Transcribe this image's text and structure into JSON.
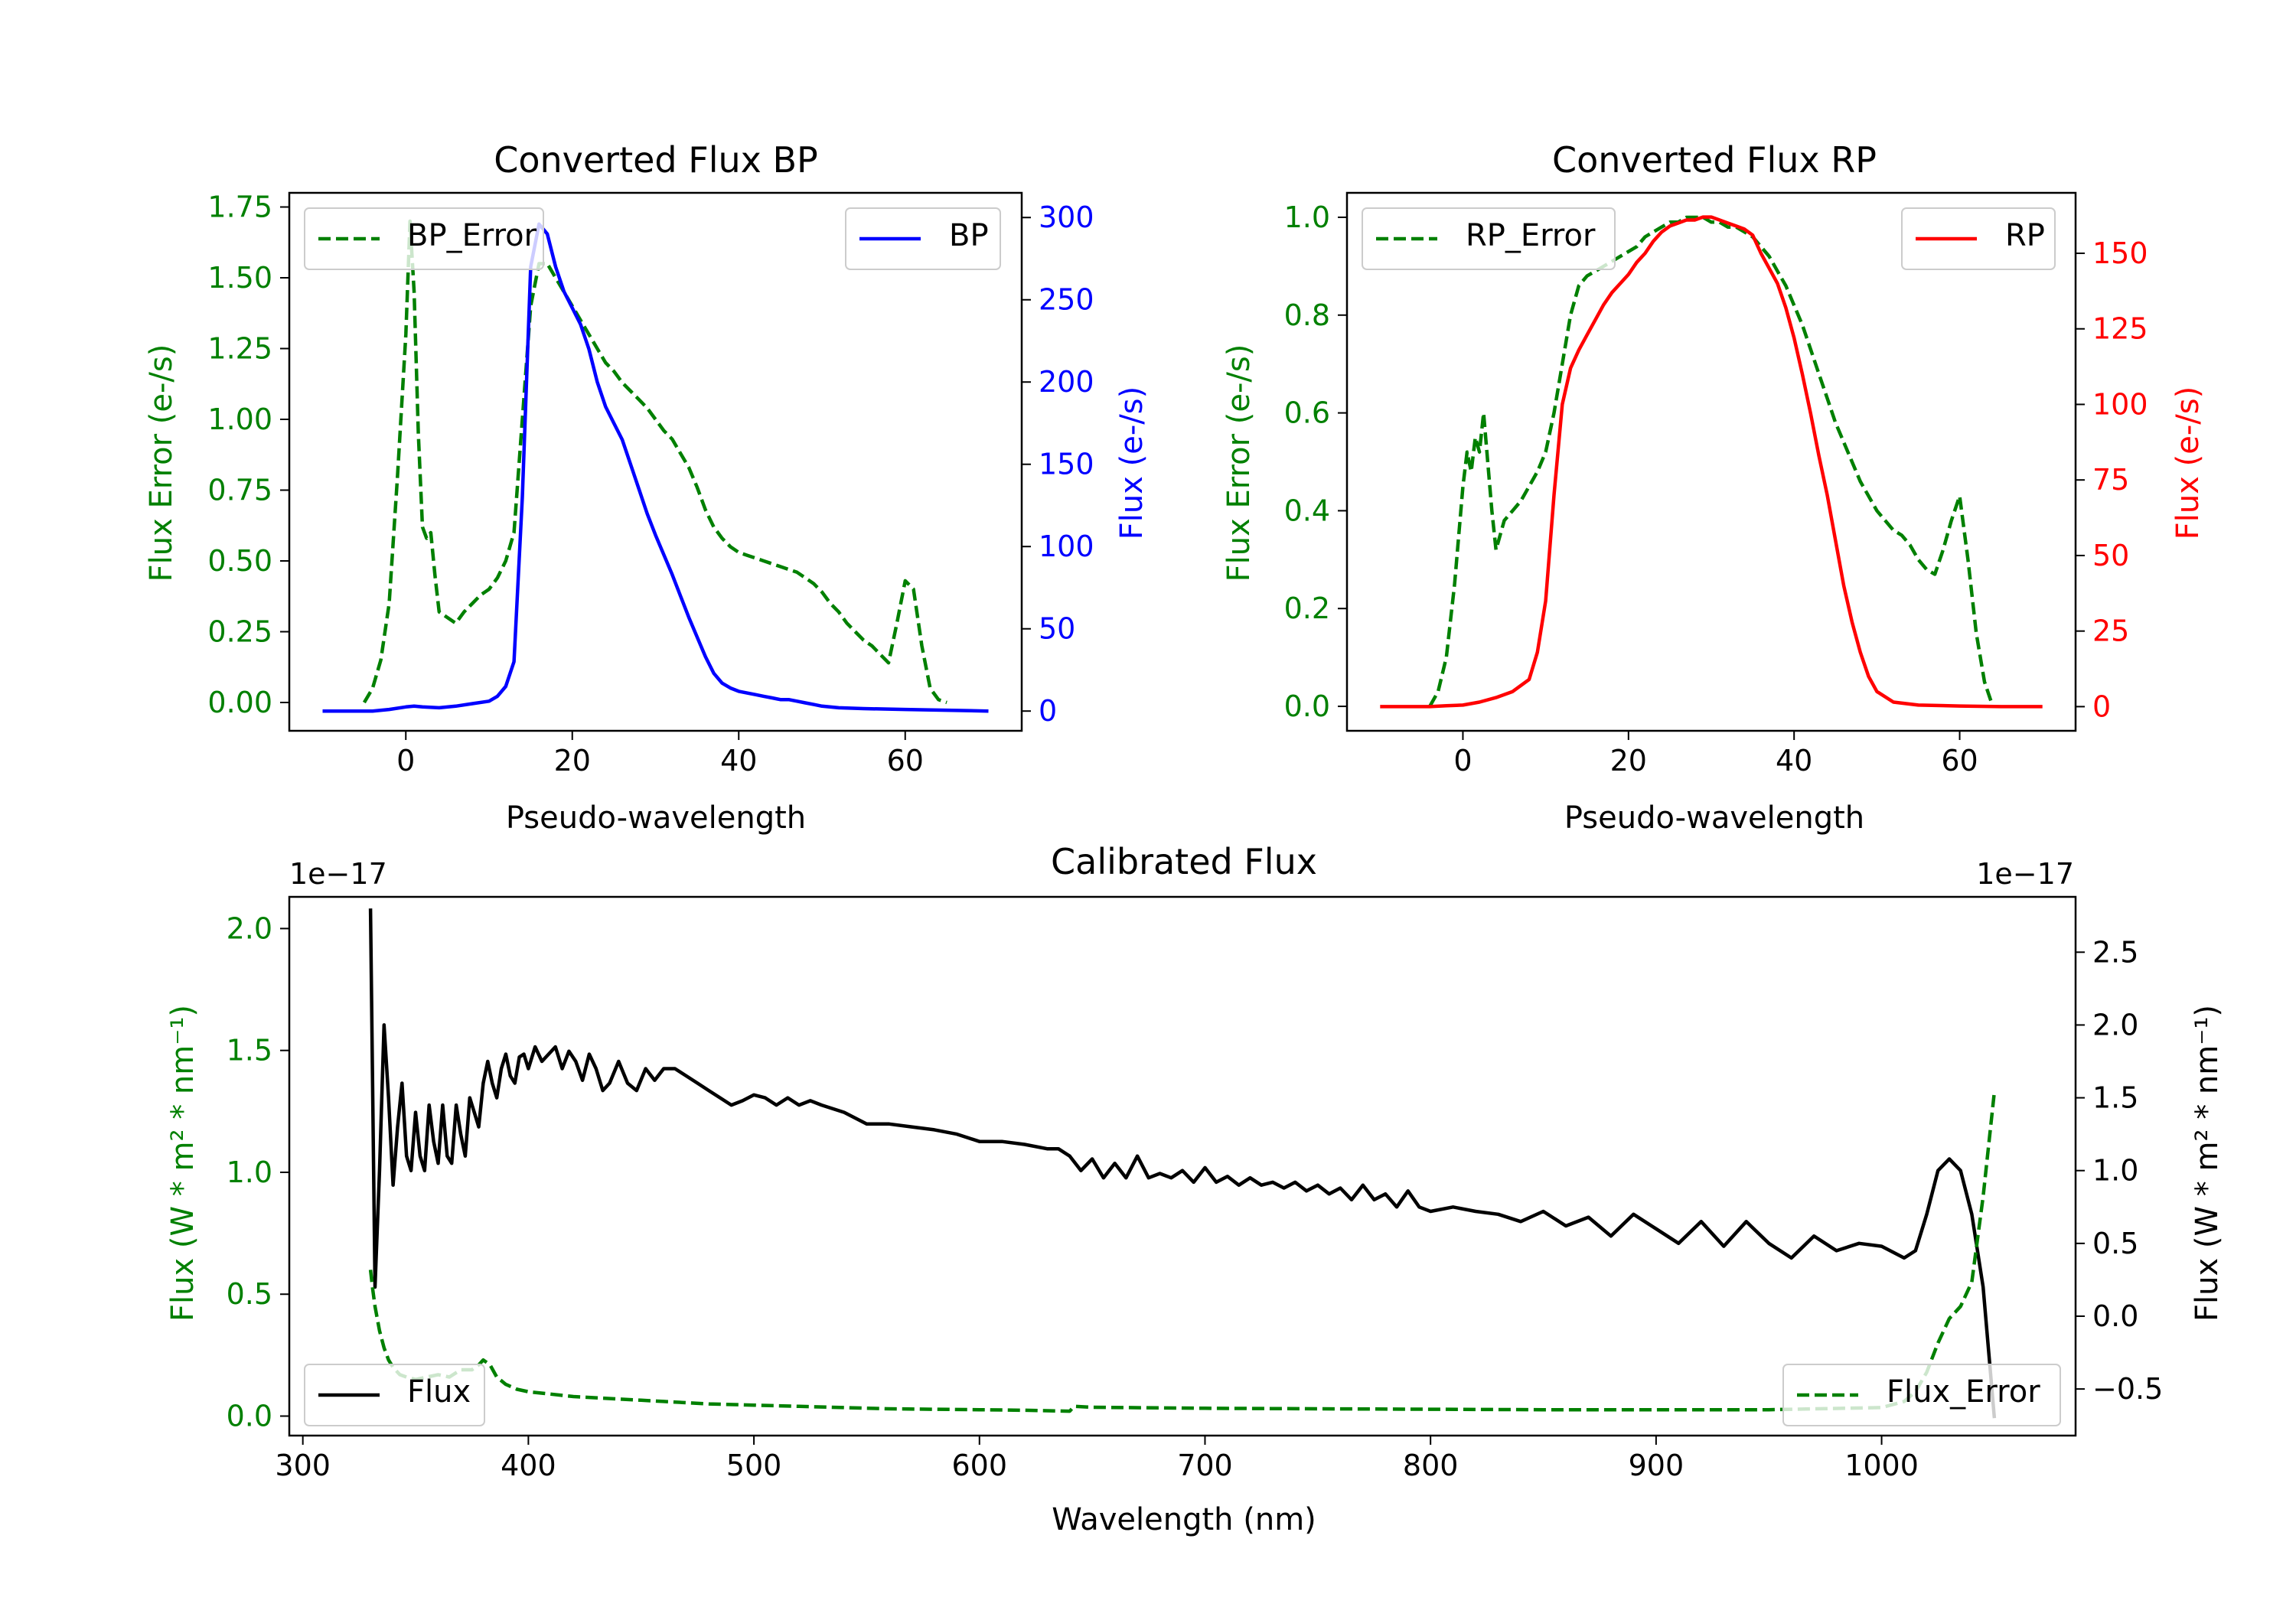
{
  "colors": {
    "green": "#008000",
    "blue": "#0000ff",
    "red": "#ff0000",
    "black": "#000000"
  },
  "chart_data": [
    {
      "id": "bp",
      "type": "line",
      "title": "Converted Flux BP",
      "xlabel": "Pseudo-wavelength",
      "ylabel_left": "Flux Error (e-/s)",
      "ylabel_right": "Flux (e-/s)",
      "xlim": [
        -14,
        74
      ],
      "ylim_left": [
        -0.1,
        1.8
      ],
      "ylim_right": [
        -12,
        315
      ],
      "xticks": [
        0,
        20,
        40,
        60
      ],
      "yticks_left": [
        "0.00",
        "0.25",
        "0.50",
        "0.75",
        "1.00",
        "1.25",
        "1.50",
        "1.75"
      ],
      "yticks_right": [
        0,
        50,
        100,
        150,
        200,
        250,
        300
      ],
      "legend_left": "BP_Error",
      "legend_right": "BP",
      "series": [
        {
          "name": "BP_Error",
          "axis": "left",
          "color": "#008000",
          "dash": true,
          "x": [
            -5,
            -4,
            -3,
            -2,
            -1,
            0,
            0.5,
            1,
            1.5,
            2,
            2.5,
            3,
            3.5,
            4,
            5,
            6,
            7,
            8,
            9,
            10,
            11,
            12,
            13,
            14,
            15,
            16,
            17,
            18,
            19,
            20,
            21,
            22,
            23,
            24,
            25,
            26,
            27,
            28,
            29,
            30,
            31,
            32,
            33,
            34,
            35,
            36,
            37,
            38,
            39,
            40,
            41,
            42,
            43,
            44,
            45,
            46,
            47,
            48,
            49,
            50,
            51,
            52,
            53,
            54,
            55,
            56,
            57,
            58,
            59,
            60,
            61,
            62,
            63,
            64,
            65
          ],
          "y": [
            0.0,
            0.05,
            0.15,
            0.35,
            0.8,
            1.3,
            1.7,
            1.45,
            0.95,
            0.62,
            0.58,
            0.6,
            0.45,
            0.32,
            0.3,
            0.28,
            0.32,
            0.35,
            0.38,
            0.4,
            0.44,
            0.5,
            0.6,
            1.0,
            1.4,
            1.55,
            1.55,
            1.5,
            1.45,
            1.4,
            1.35,
            1.3,
            1.25,
            1.2,
            1.17,
            1.13,
            1.1,
            1.07,
            1.04,
            1.0,
            0.96,
            0.93,
            0.88,
            0.83,
            0.76,
            0.68,
            0.62,
            0.58,
            0.55,
            0.53,
            0.52,
            0.51,
            0.5,
            0.49,
            0.48,
            0.47,
            0.46,
            0.44,
            0.42,
            0.39,
            0.35,
            0.32,
            0.28,
            0.25,
            0.22,
            0.2,
            0.17,
            0.14,
            0.28,
            0.43,
            0.4,
            0.2,
            0.05,
            0.01,
            0.0
          ]
        },
        {
          "name": "BP",
          "axis": "right",
          "color": "#0000ff",
          "dash": false,
          "x": [
            -10,
            -4,
            -2,
            0,
            1,
            2,
            4,
            6,
            8,
            10,
            11,
            12,
            13,
            14,
            15,
            16,
            17,
            18,
            19,
            20,
            21,
            22,
            23,
            24,
            25,
            26,
            27,
            28,
            29,
            30,
            31,
            32,
            33,
            34,
            35,
            36,
            37,
            38,
            39,
            40,
            41,
            42,
            43,
            44,
            45,
            46,
            47,
            48,
            49,
            50,
            52,
            55,
            60,
            65,
            70
          ],
          "y": [
            0,
            0,
            1,
            2.5,
            3,
            2.5,
            2,
            3,
            4.5,
            6,
            9,
            15,
            30,
            130,
            270,
            296,
            290,
            270,
            255,
            245,
            235,
            220,
            200,
            185,
            175,
            165,
            150,
            135,
            120,
            107,
            95,
            83,
            70,
            57,
            45,
            33,
            23,
            17,
            14,
            12,
            11,
            10,
            9,
            8,
            7,
            7,
            6,
            5,
            4,
            3,
            2,
            1.5,
            1,
            0.5,
            0
          ]
        }
      ]
    },
    {
      "id": "rp",
      "type": "line",
      "title": "Converted Flux RP",
      "xlabel": "Pseudo-wavelength",
      "ylabel_left": "Flux Error (e-/s)",
      "ylabel_right": "Flux (e-/s)",
      "xlim": [
        -14,
        74
      ],
      "ylim_left": [
        -0.05,
        1.05
      ],
      "ylim_right": [
        -8,
        170
      ],
      "xticks": [
        0,
        20,
        40,
        60
      ],
      "yticks_left": [
        "0.0",
        "0.2",
        "0.4",
        "0.6",
        "0.8",
        "1.0"
      ],
      "yticks_right": [
        0,
        25,
        50,
        75,
        100,
        125,
        150
      ],
      "legend_left": "RP_Error",
      "legend_right": "RP",
      "series": [
        {
          "name": "RP_Error",
          "axis": "left",
          "color": "#008000",
          "dash": true,
          "x": [
            -4,
            -3,
            -2,
            -1,
            0,
            0.5,
            1,
            1.5,
            2,
            2.5,
            3,
            3.5,
            4,
            5,
            6,
            7,
            8,
            9,
            10,
            11,
            12,
            13,
            14,
            15,
            16,
            17,
            18,
            19,
            20,
            21,
            22,
            23,
            24,
            25,
            26,
            27,
            28,
            29,
            30,
            31,
            32,
            33,
            34,
            35,
            36,
            37,
            38,
            39,
            40,
            41,
            42,
            43,
            44,
            45,
            46,
            47,
            48,
            49,
            50,
            51,
            52,
            53,
            54,
            55,
            56,
            57,
            58,
            59,
            60,
            61,
            62,
            63,
            64
          ],
          "y": [
            0.0,
            0.03,
            0.1,
            0.25,
            0.45,
            0.52,
            0.48,
            0.55,
            0.52,
            0.6,
            0.5,
            0.4,
            0.32,
            0.38,
            0.4,
            0.42,
            0.45,
            0.48,
            0.52,
            0.6,
            0.7,
            0.8,
            0.86,
            0.88,
            0.89,
            0.9,
            0.91,
            0.92,
            0.93,
            0.94,
            0.96,
            0.97,
            0.98,
            0.99,
            0.99,
            1.0,
            1.0,
            1.0,
            0.99,
            0.99,
            0.98,
            0.98,
            0.97,
            0.96,
            0.94,
            0.92,
            0.89,
            0.86,
            0.82,
            0.78,
            0.73,
            0.68,
            0.63,
            0.58,
            0.54,
            0.5,
            0.46,
            0.43,
            0.4,
            0.38,
            0.36,
            0.35,
            0.33,
            0.3,
            0.28,
            0.27,
            0.32,
            0.38,
            0.43,
            0.3,
            0.15,
            0.05,
            0.0
          ]
        },
        {
          "name": "RP",
          "axis": "right",
          "color": "#ff0000",
          "dash": false,
          "x": [
            -10,
            -4,
            -2,
            0,
            2,
            4,
            6,
            8,
            9,
            10,
            11,
            12,
            13,
            14,
            15,
            16,
            17,
            18,
            19,
            20,
            21,
            22,
            23,
            24,
            25,
            26,
            27,
            28,
            29,
            30,
            31,
            32,
            33,
            34,
            35,
            36,
            37,
            38,
            39,
            40,
            41,
            42,
            43,
            44,
            45,
            46,
            47,
            48,
            49,
            50,
            52,
            55,
            60,
            65,
            70
          ],
          "y": [
            0,
            0,
            0.3,
            0.5,
            1.5,
            3,
            5,
            9,
            18,
            35,
            70,
            100,
            112,
            118,
            123,
            128,
            133,
            137,
            140,
            143,
            147,
            150,
            154,
            157,
            159,
            160,
            161,
            161,
            162,
            162,
            161,
            160,
            159,
            158,
            156,
            150,
            145,
            140,
            132,
            122,
            110,
            97,
            83,
            70,
            55,
            40,
            28,
            18,
            10,
            5,
            1.5,
            0.5,
            0.2,
            0,
            0
          ]
        }
      ]
    },
    {
      "id": "cal",
      "type": "line",
      "title": "Calibrated Flux",
      "xlabel": "Wavelength (nm)",
      "ylabel_left": "Flux (W * m² * nm⁻¹)",
      "ylabel_right": "Flux (W * m² * nm⁻¹)",
      "offset_left": "1e−17",
      "offset_right": "1e−17",
      "xlim": [
        294,
        1086
      ],
      "ylim_left": [
        -0.08,
        2.13
      ],
      "ylim_right": [
        -0.82,
        2.88
      ],
      "xticks": [
        300,
        400,
        500,
        600,
        700,
        800,
        900,
        1000
      ],
      "yticks_left": [
        "0.0",
        "0.5",
        "1.0",
        "1.5",
        "2.0"
      ],
      "yticks_right": [
        "−0.5",
        "0.0",
        "0.5",
        "1.0",
        "1.5",
        "2.0",
        "2.5"
      ],
      "legend_left": "Flux",
      "legend_right": "Flux_Error",
      "series": [
        {
          "name": "Flux",
          "axis": "right",
          "color": "#000000",
          "dash": false,
          "x": [
            330,
            332,
            334,
            336,
            338,
            340,
            342,
            344,
            346,
            348,
            350,
            352,
            354,
            356,
            358,
            360,
            362,
            364,
            366,
            368,
            370,
            372,
            374,
            376,
            378,
            380,
            382,
            384,
            386,
            388,
            390,
            392,
            394,
            396,
            398,
            400,
            403,
            406,
            409,
            412,
            415,
            418,
            421,
            424,
            427,
            430,
            433,
            436,
            440,
            444,
            448,
            452,
            456,
            460,
            465,
            470,
            475,
            480,
            485,
            490,
            495,
            500,
            505,
            510,
            515,
            520,
            525,
            530,
            540,
            550,
            560,
            570,
            580,
            590,
            600,
            610,
            620,
            630,
            635,
            640,
            645,
            650,
            655,
            660,
            665,
            670,
            675,
            680,
            685,
            690,
            695,
            700,
            705,
            710,
            715,
            720,
            725,
            730,
            735,
            740,
            745,
            750,
            755,
            760,
            765,
            770,
            775,
            780,
            785,
            790,
            795,
            800,
            810,
            820,
            830,
            840,
            850,
            860,
            870,
            880,
            890,
            900,
            910,
            920,
            930,
            940,
            950,
            960,
            970,
            980,
            990,
            1000,
            1010,
            1015,
            1020,
            1025,
            1030,
            1035,
            1040,
            1045,
            1050
          ],
          "y": [
            2.8,
            0.2,
            1.0,
            2.0,
            1.5,
            0.9,
            1.3,
            1.6,
            1.1,
            1.0,
            1.4,
            1.1,
            1.0,
            1.45,
            1.2,
            1.05,
            1.45,
            1.1,
            1.05,
            1.45,
            1.25,
            1.1,
            1.5,
            1.4,
            1.3,
            1.6,
            1.75,
            1.6,
            1.5,
            1.7,
            1.8,
            1.65,
            1.6,
            1.78,
            1.8,
            1.7,
            1.85,
            1.75,
            1.8,
            1.85,
            1.7,
            1.82,
            1.75,
            1.62,
            1.8,
            1.7,
            1.55,
            1.6,
            1.75,
            1.6,
            1.55,
            1.7,
            1.62,
            1.7,
            1.7,
            1.65,
            1.6,
            1.55,
            1.5,
            1.45,
            1.48,
            1.52,
            1.5,
            1.45,
            1.5,
            1.45,
            1.48,
            1.45,
            1.4,
            1.32,
            1.32,
            1.3,
            1.28,
            1.25,
            1.2,
            1.2,
            1.18,
            1.15,
            1.15,
            1.1,
            1.0,
            1.08,
            0.95,
            1.05,
            0.95,
            1.1,
            0.95,
            0.98,
            0.95,
            1.0,
            0.92,
            1.02,
            0.92,
            0.96,
            0.9,
            0.95,
            0.9,
            0.92,
            0.88,
            0.92,
            0.86,
            0.9,
            0.84,
            0.88,
            0.8,
            0.9,
            0.8,
            0.84,
            0.75,
            0.86,
            0.75,
            0.72,
            0.75,
            0.72,
            0.7,
            0.65,
            0.72,
            0.62,
            0.68,
            0.55,
            0.7,
            0.6,
            0.5,
            0.65,
            0.48,
            0.65,
            0.5,
            0.4,
            0.55,
            0.45,
            0.5,
            0.48,
            0.4,
            0.45,
            0.7,
            1.0,
            1.08,
            1.0,
            0.7,
            0.2,
            -0.7
          ]
        },
        {
          "name": "Flux_Error",
          "axis": "left",
          "color": "#008000",
          "dash": true,
          "x": [
            330,
            331,
            332,
            334,
            336,
            338,
            340,
            343,
            346,
            350,
            355,
            360,
            365,
            370,
            375,
            378,
            380,
            383,
            386,
            390,
            395,
            400,
            410,
            420,
            430,
            440,
            450,
            460,
            480,
            500,
            520,
            540,
            560,
            580,
            600,
            620,
            640,
            642,
            650,
            700,
            750,
            800,
            850,
            900,
            950,
            1000,
            1010,
            1015,
            1020,
            1025,
            1030,
            1035,
            1040,
            1045,
            1050
          ],
          "y": [
            0.6,
            0.52,
            0.45,
            0.35,
            0.28,
            0.23,
            0.2,
            0.17,
            0.16,
            0.15,
            0.16,
            0.17,
            0.16,
            0.19,
            0.19,
            0.21,
            0.23,
            0.21,
            0.16,
            0.13,
            0.11,
            0.1,
            0.09,
            0.08,
            0.075,
            0.07,
            0.065,
            0.06,
            0.05,
            0.045,
            0.04,
            0.035,
            0.03,
            0.028,
            0.026,
            0.024,
            0.02,
            0.04,
            0.036,
            0.032,
            0.03,
            0.028,
            0.026,
            0.026,
            0.026,
            0.035,
            0.06,
            0.1,
            0.18,
            0.3,
            0.4,
            0.45,
            0.55,
            0.9,
            1.33
          ]
        }
      ]
    }
  ]
}
